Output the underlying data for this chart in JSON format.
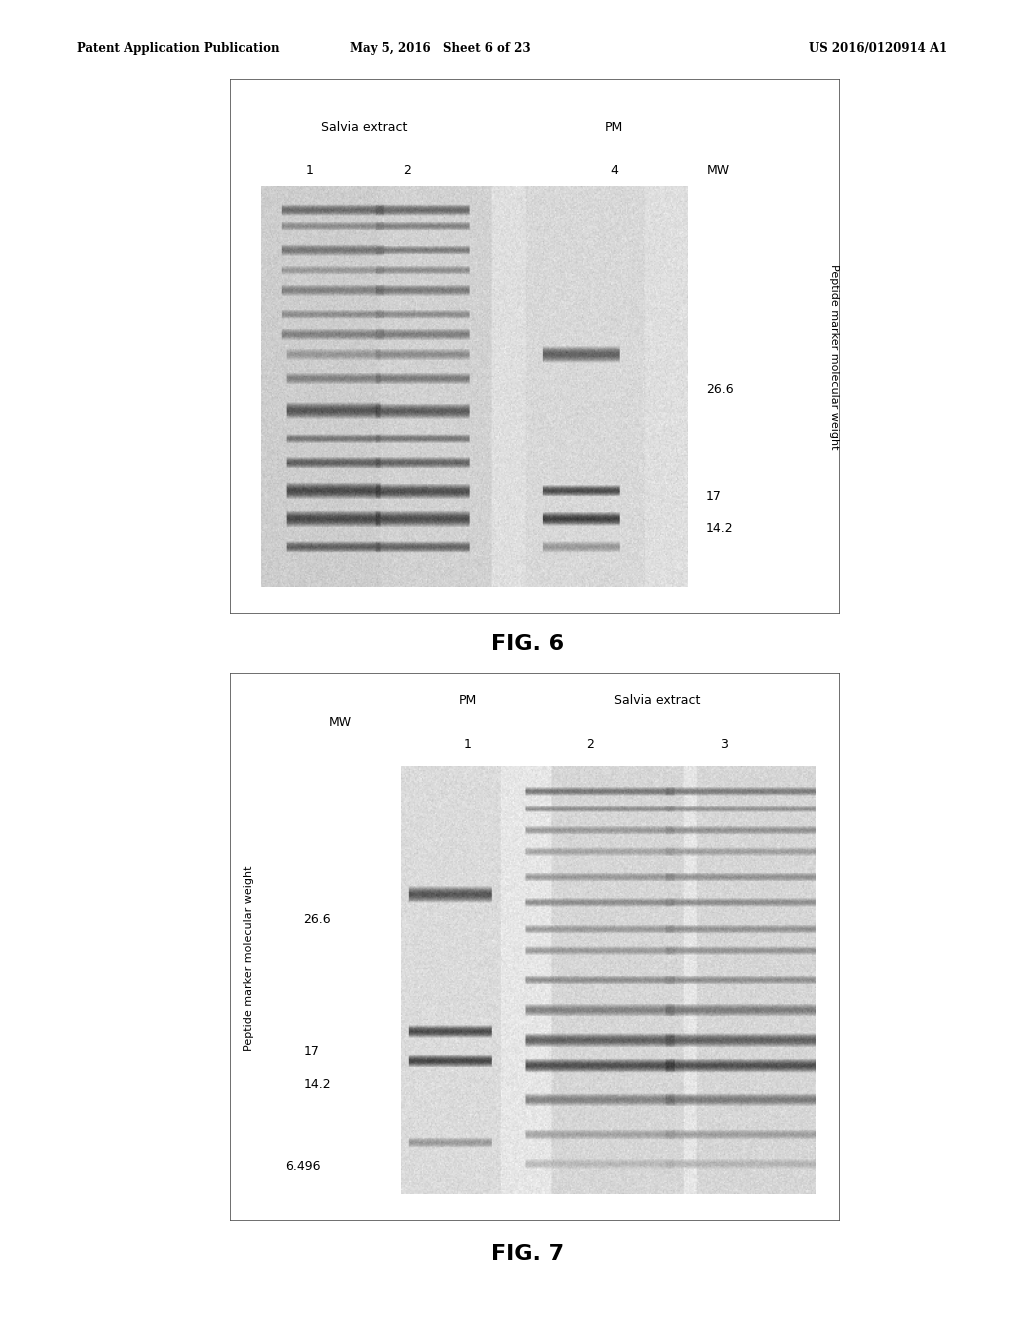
{
  "page_title_left": "Patent Application Publication",
  "page_title_mid": "May 5, 2016   Sheet 6 of 23",
  "page_title_right": "US 2016/0120914 A1",
  "fig6_label_salvia": "Salvia extract",
  "fig6_label_pm": "PM",
  "fig6_lane1": "1",
  "fig6_lane2": "2",
  "fig6_lane4": "4",
  "fig6_mw": "MW",
  "fig6_mw1": "26.6",
  "fig6_mw2": "17",
  "fig6_mw3": "14.2",
  "fig6_ylabel": "Peptide marker molecular weight",
  "fig6_caption": "FIG. 6",
  "fig7_label_pm": "PM",
  "fig7_label_salvia": "Salvia extract",
  "fig7_mw": "MW",
  "fig7_lane1": "1",
  "fig7_lane2": "2",
  "fig7_lane3": "3",
  "fig7_mw1": "26.6",
  "fig7_mw2": "17",
  "fig7_mw3": "14.2",
  "fig7_mw4": "6.496",
  "fig7_ylabel": "Peptide marker molecular weight",
  "fig7_caption": "FIG. 7",
  "bg": "#ffffff"
}
